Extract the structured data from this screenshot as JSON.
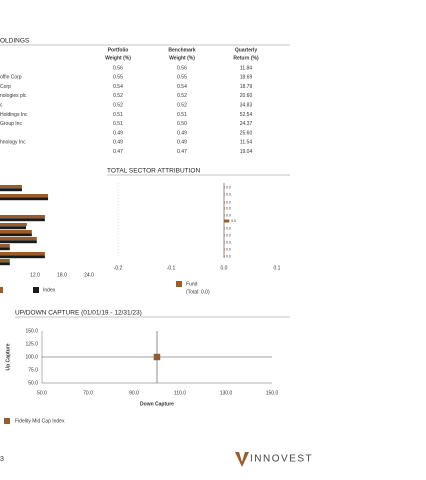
{
  "holdings": {
    "title": "OLDINGS",
    "columns": [
      [
        "Portfolio",
        "Weight (%)"
      ],
      [
        "Benchmark",
        "Weight (%)"
      ],
      [
        "Quarterly",
        "Return (%)"
      ]
    ],
    "rows": [
      {
        "values": [
          "0.56",
          "0.56",
          "11.84"
        ]
      },
      {
        "name": "offin Corp",
        "values": [
          "0.55",
          "0.55",
          "18.69"
        ]
      },
      {
        "name": "Corp",
        "values": [
          "0.54",
          "0.54",
          "18.79"
        ]
      },
      {
        "name": "nologies plc",
        "values": [
          "0.52",
          "0.52",
          "20.60"
        ]
      },
      {
        "name": "c",
        "values": [
          "0.52",
          "0.52",
          "34.83"
        ]
      },
      {
        "name": "Holdings Inc",
        "values": [
          "0.51",
          "0.51",
          "52.54"
        ]
      },
      {
        "name": "Group Inc",
        "values": [
          "0.51",
          "0.50",
          "24.37"
        ]
      },
      {
        "values": [
          "0.49",
          "0.49",
          "25.60"
        ]
      },
      {
        "name": "hnology Inc",
        "values": [
          "0.49",
          "0.49",
          "11.54"
        ]
      },
      {
        "values": [
          "0.47",
          "0.47",
          "19.04"
        ]
      }
    ]
  },
  "chart_data": [
    {
      "type": "bar",
      "orientation": "horizontal",
      "xlim": [
        0,
        24
      ],
      "xticks": [
        {
          "value": 12,
          "label": "12.0"
        },
        {
          "value": 18,
          "label": "18.0"
        },
        {
          "value": 24,
          "label": "24.0"
        }
      ],
      "series": [
        {
          "color": "#9c5b2a",
          "values": [
            9.1,
            14.9,
            14.2,
            10.2,
            11.3,
            12.4,
            6.4,
            14.2,
            6.4
          ]
        },
        {
          "name": "Index",
          "color": "#1a1a1a",
          "values": [
            9.1,
            14.9,
            14.2,
            10.0,
            11.3,
            12.4,
            6.4,
            14.2,
            6.4
          ]
        }
      ]
    },
    {
      "type": "bar",
      "orientation": "horizontal",
      "title": "TOTAL SECTOR ATTRIBUTION",
      "xlim": [
        -0.2,
        0.1
      ],
      "xticks": [
        {
          "value": -0.2,
          "label": "-0.2"
        },
        {
          "value": -0.1,
          "label": "-0.1"
        },
        {
          "value": 0,
          "label": "0.0"
        },
        {
          "value": 0.1,
          "label": "0.1"
        }
      ],
      "series": [
        {
          "name": "Fund",
          "color": "#9c5b2a",
          "values": [
            0,
            0,
            0,
            0,
            0,
            0.01,
            0,
            0,
            0,
            0,
            0
          ],
          "value_labels": [
            "0.0",
            "0.0",
            "0.0",
            "0.0",
            "0.0",
            "0.0",
            "0.0",
            "0.0",
            "0.0",
            "0.0",
            "0.0"
          ]
        }
      ],
      "annotation": "(Total: 0.0)"
    },
    {
      "type": "scatter",
      "title": "UP/DOWN CAPTURE (01/01/19 - 12/31/23)",
      "xlabel": "Down Capture",
      "ylabel": "Up Capture",
      "xlim": [
        50,
        150
      ],
      "ylim": [
        50,
        150
      ],
      "xticks": [
        {
          "value": 50,
          "label": "50.0"
        },
        {
          "value": 70,
          "label": "70.0"
        },
        {
          "value": 90,
          "label": "90.0"
        },
        {
          "value": 110,
          "label": "110.0"
        },
        {
          "value": 130,
          "label": "130.0"
        },
        {
          "value": 150,
          "label": "150.0"
        }
      ],
      "yticks": [
        {
          "value": 50,
          "label": "50.0"
        },
        {
          "value": 75,
          "label": "75.0"
        },
        {
          "value": 100,
          "label": "100.0"
        },
        {
          "value": 125,
          "label": "125.0"
        },
        {
          "value": 150,
          "label": "150.0"
        }
      ],
      "crosshair": {
        "x": 100,
        "y": 100
      },
      "series": [
        {
          "name": "Fidelity Mid Cap Index",
          "color": "#9c5b2a",
          "x": [
            100
          ],
          "y": [
            100
          ]
        }
      ]
    }
  ],
  "footer": {
    "page": "3",
    "logo": "INNOVEST"
  }
}
